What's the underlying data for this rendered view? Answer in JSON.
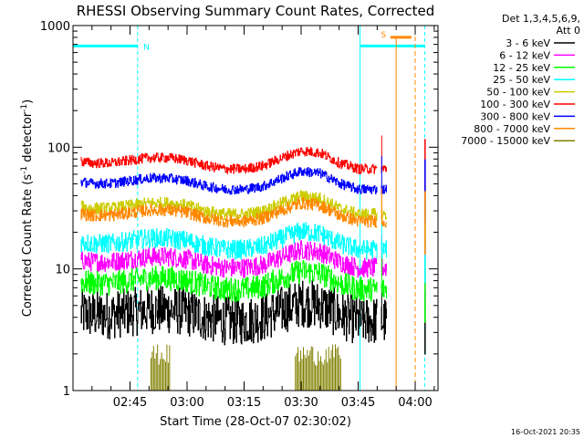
{
  "chart_data": {
    "type": "line",
    "title": "RHESSI Observing Summary Count Rates, Corrected",
    "ylabel_main": "Corrected Count Rate (s",
    "ylabel_sup1": "-1",
    "ylabel_mid": " detector",
    "ylabel_sup2": "-1",
    "ylabel_end": ")",
    "xlabel": "Start Time (28-Oct-07 02:30:02)",
    "timestamp": "16-Oct-2021 20:35",
    "y_scale": "log",
    "ylim": [
      1,
      1000
    ],
    "xlim_minutes": [
      0,
      96
    ],
    "y_ticks": [
      {
        "value": 1,
        "label": "1"
      },
      {
        "value": 10,
        "label": "10"
      },
      {
        "value": 100,
        "label": "100"
      },
      {
        "value": 1000,
        "label": "1000"
      }
    ],
    "x_ticks": [
      {
        "minutes": 15,
        "label": "02:45"
      },
      {
        "minutes": 30,
        "label": "03:00"
      },
      {
        "minutes": 45,
        "label": "03:15"
      },
      {
        "minutes": 60,
        "label": "03:30"
      },
      {
        "minutes": 75,
        "label": "03:45"
      },
      {
        "minutes": 90,
        "label": "04:00"
      }
    ],
    "legend_header": [
      "Det 1,3,4,5,6,9,",
      "Att 0"
    ],
    "series": [
      {
        "name": "3 - 6 keV",
        "color": "#000000",
        "base": 4.4,
        "noise": 0.2
      },
      {
        "name": "6 - 12 keV",
        "color": "#ff00ff",
        "base": 12.0,
        "noise": 0.08
      },
      {
        "name": "12 - 25 keV",
        "color": "#00ff00",
        "base": 8.0,
        "noise": 0.1
      },
      {
        "name": "25 - 50 keV",
        "color": "#00ffff",
        "base": 17.0,
        "noise": 0.08
      },
      {
        "name": "50 - 100 keV",
        "color": "#cccc00",
        "base": 33.0,
        "noise": 0.05
      },
      {
        "name": "100 - 300 keV",
        "color": "#ff0000",
        "base": 78.0,
        "noise": 0.04
      },
      {
        "name": "300 - 800 keV",
        "color": "#0000ff",
        "base": 53.0,
        "noise": 0.04
      },
      {
        "name": "800 - 7000 keV",
        "color": "#ff8800",
        "base": 29.0,
        "noise": 0.05
      },
      {
        "name": "7000 - 15000 keV",
        "color": "#808000",
        "base": 1.0,
        "noise": 0.0
      }
    ],
    "profile": {
      "minutes": [
        0,
        5,
        10,
        15,
        20,
        25,
        30,
        35,
        40,
        45,
        50,
        55,
        60,
        65,
        70,
        75,
        80
      ],
      "factor": [
        1.0,
        0.95,
        0.95,
        1.0,
        1.05,
        1.05,
        1.0,
        0.9,
        0.85,
        0.85,
        0.9,
        1.05,
        1.2,
        1.15,
        0.95,
        0.85,
        0.85
      ]
    },
    "data_gaps_minutes": [
      [
        0,
        2
      ],
      [
        80,
        81
      ],
      [
        82.5,
        92.5
      ],
      [
        92.5,
        96
      ]
    ],
    "night_intervals_minutes": [
      [
        -1,
        17,
        "N"
      ],
      [
        75.5,
        92.5,
        "S"
      ]
    ],
    "night_bar_label_n": "N",
    "night_bar_label_s": "S",
    "saa_markers_minutes": [
      85,
      90
    ]
  }
}
